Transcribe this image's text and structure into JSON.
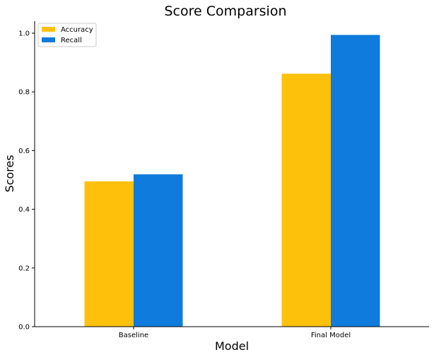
{
  "chart_data": {
    "type": "bar",
    "title": "Score Comparsion",
    "xlabel": "Model",
    "ylabel": "Scores",
    "categories": [
      "Baseline",
      "Final Model"
    ],
    "series": [
      {
        "name": "Accuracy",
        "values": [
          0.495,
          0.862
        ],
        "color": "#FDC10C"
      },
      {
        "name": "Recall",
        "values": [
          0.519,
          0.994
        ],
        "color": "#0F7BDD"
      }
    ],
    "ylim": [
      0,
      1.04
    ],
    "yticks": [
      0.0,
      0.2,
      0.4,
      0.6,
      0.8,
      1.0
    ],
    "ytick_labels": [
      "0.0",
      "0.2",
      "0.4",
      "0.6",
      "0.8",
      "1.0"
    ],
    "legend_placement": "top-left",
    "grid": false
  }
}
